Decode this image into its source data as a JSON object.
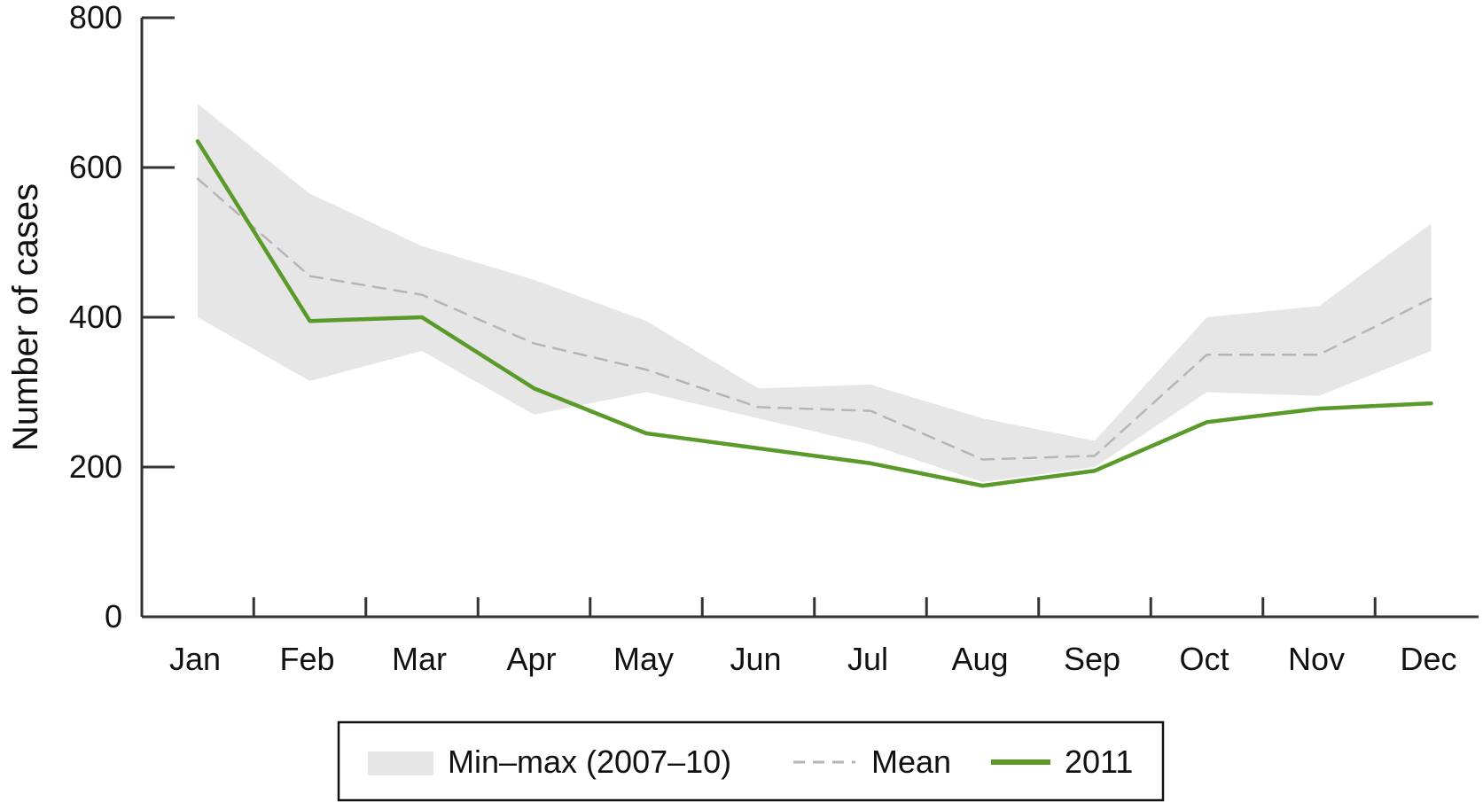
{
  "chart_data": {
    "type": "line",
    "categories": [
      "Jan",
      "Feb",
      "Mar",
      "Apr",
      "May",
      "Jun",
      "Jul",
      "Aug",
      "Sep",
      "Oct",
      "Nov",
      "Dec"
    ],
    "ylabel": "Number of cases",
    "xlabel": "",
    "ylim": [
      0,
      800
    ],
    "yticks": [
      "0",
      "200",
      "400",
      "600",
      "800"
    ],
    "band": {
      "name": "Min–max (2007–10)",
      "color": "#e6e6e6",
      "min": [
        400,
        315,
        355,
        270,
        300,
        265,
        230,
        180,
        200,
        300,
        295,
        355
      ],
      "max": [
        685,
        565,
        495,
        450,
        395,
        305,
        310,
        265,
        235,
        400,
        415,
        525
      ]
    },
    "series": [
      {
        "name": "Mean",
        "style": "dashed",
        "color": "#b5b5b5",
        "values": [
          585,
          455,
          430,
          365,
          330,
          280,
          275,
          210,
          215,
          350,
          350,
          425
        ]
      },
      {
        "name": "2011",
        "style": "solid",
        "color": "#5a9a2a",
        "values": [
          635,
          395,
          400,
          305,
          245,
          225,
          205,
          175,
          195,
          260,
          278,
          285
        ]
      }
    ],
    "grid": false,
    "legend_position": "bottom-center"
  }
}
